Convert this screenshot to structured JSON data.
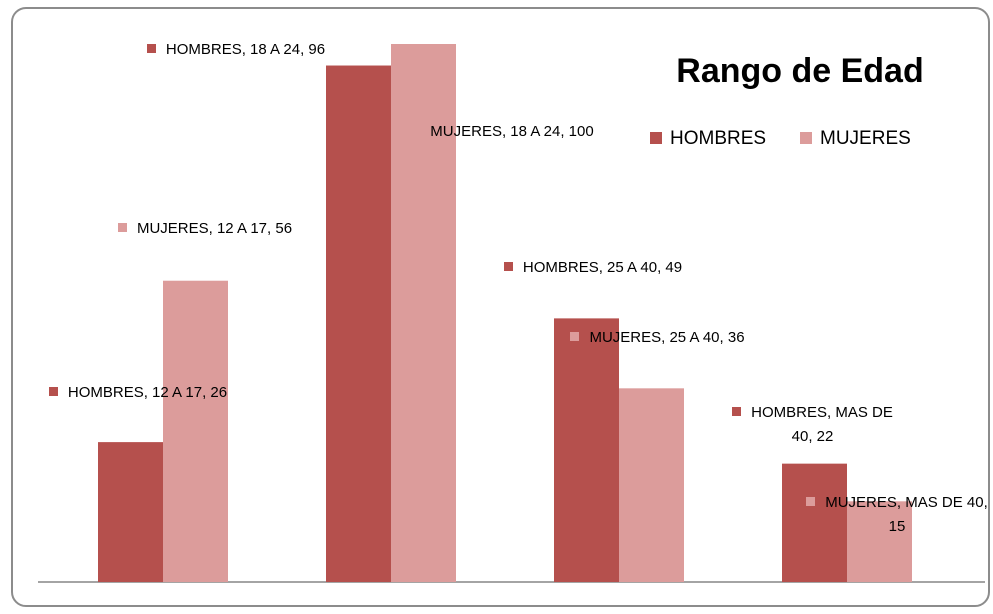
{
  "chart_data": {
    "type": "bar",
    "title": "Rango de Edad",
    "ylim": [
      0,
      100
    ],
    "series": [
      {
        "name": "HOMBRES",
        "color": "#b5504d",
        "values": [
          26,
          96,
          49,
          22
        ],
        "value_labels": [
          "HOMBRES, 12 A 17, 26",
          "HOMBRES, 18 A 24, 96",
          "HOMBRES, 25 A 40, 49",
          "HOMBRES, MAS DE 40, 22"
        ]
      },
      {
        "name": "MUJERES",
        "color": "#dc9c9b",
        "values": [
          56,
          100,
          36,
          15
        ],
        "value_labels": [
          "MUJERES, 12 A 17, 56",
          "MUJERES, 18 A 24, 100",
          "MUJERES, 25 A 40, 36",
          "MUJERES, MAS DE 40, 15"
        ]
      }
    ],
    "legend": "top-right"
  }
}
